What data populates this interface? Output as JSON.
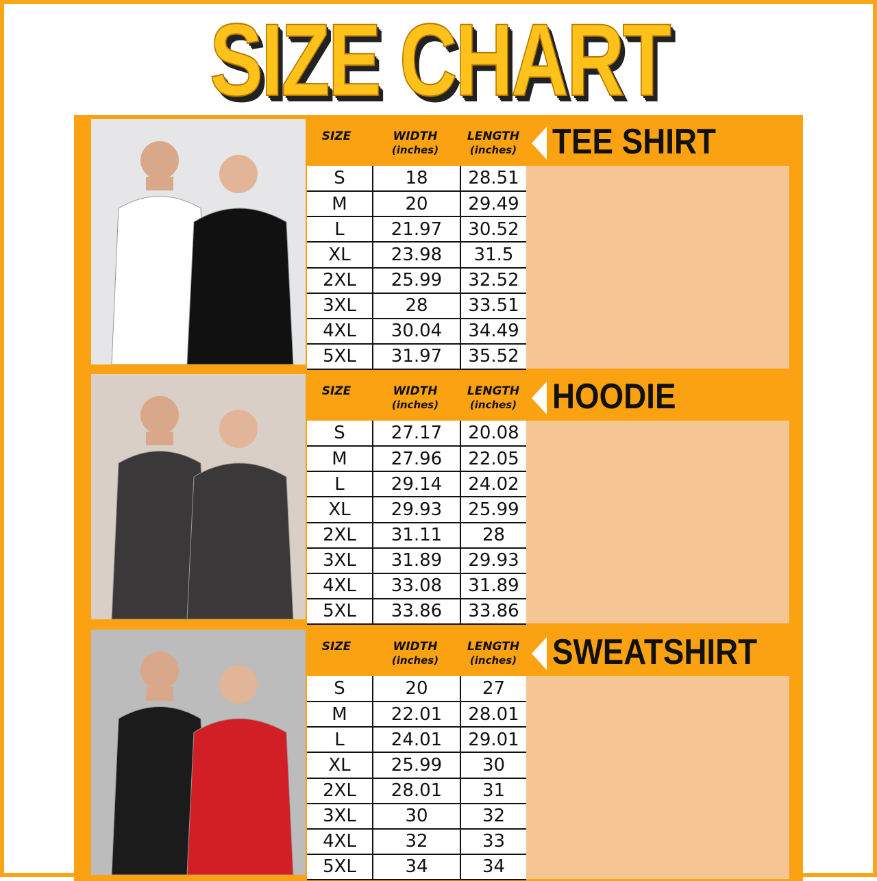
{
  "title": "SIZE CHART",
  "colors": {
    "accent": "#fba213",
    "title_yellow": "#ffc21a",
    "peach": "#f5c594"
  },
  "headers": {
    "size": "SIZE",
    "width": "WIDTH",
    "length": "LENGTH",
    "unit": "(inches)"
  },
  "sections": [
    {
      "name": "TEE SHIRT",
      "photo": "photo-tee-shirt-models",
      "rows": [
        [
          "S",
          "18",
          "28.51"
        ],
        [
          "M",
          "20",
          "29.49"
        ],
        [
          "L",
          "21.97",
          "30.52"
        ],
        [
          "XL",
          "23.98",
          "31.5"
        ],
        [
          "2XL",
          "25.99",
          "32.52"
        ],
        [
          "3XL",
          "28",
          "33.51"
        ],
        [
          "4XL",
          "30.04",
          "34.49"
        ],
        [
          "5XL",
          "31.97",
          "35.52"
        ]
      ]
    },
    {
      "name": "HOODIE",
      "photo": "photo-hoodie-models",
      "rows": [
        [
          "S",
          "27.17",
          "20.08"
        ],
        [
          "M",
          "27.96",
          "22.05"
        ],
        [
          "L",
          "29.14",
          "24.02"
        ],
        [
          "XL",
          "29.93",
          "25.99"
        ],
        [
          "2XL",
          "31.11",
          "28"
        ],
        [
          "3XL",
          "31.89",
          "29.93"
        ],
        [
          "4XL",
          "33.08",
          "31.89"
        ],
        [
          "5XL",
          "33.86",
          "33.86"
        ]
      ]
    },
    {
      "name": "SWEATSHIRT",
      "photo": "photo-sweatshirt-models",
      "rows": [
        [
          "S",
          "20",
          "27"
        ],
        [
          "M",
          "22.01",
          "28.01"
        ],
        [
          "L",
          "24.01",
          "29.01"
        ],
        [
          "XL",
          "25.99",
          "30"
        ],
        [
          "2XL",
          "28.01",
          "31"
        ],
        [
          "3XL",
          "30",
          "32"
        ],
        [
          "4XL",
          "32",
          "33"
        ],
        [
          "5XL",
          "34",
          "34"
        ]
      ]
    }
  ]
}
